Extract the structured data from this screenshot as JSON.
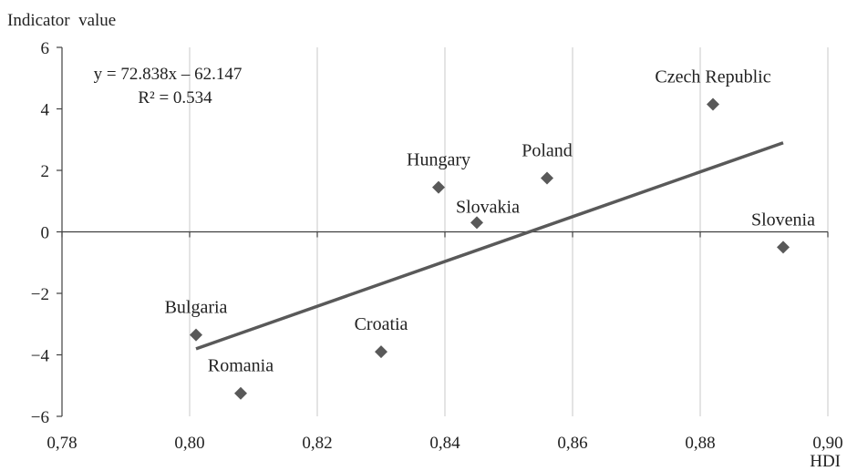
{
  "chart_data": {
    "type": "scatter",
    "ylabel": "Indicator  value",
    "xlabel": "HDI",
    "xlim": [
      0.78,
      0.9
    ],
    "ylim": [
      -6,
      6
    ],
    "x_ticks": [
      "0,78",
      "0,80",
      "0,82",
      "0,84",
      "0,86",
      "0,88",
      "0,90"
    ],
    "y_ticks": [
      "−6",
      "−4",
      "−2",
      "0",
      "2",
      "4",
      "6"
    ],
    "grid": "vertical",
    "points": [
      {
        "label": "Bulgaria",
        "x": 0.801,
        "y": -3.35
      },
      {
        "label": "Romania",
        "x": 0.808,
        "y": -5.25
      },
      {
        "label": "Croatia",
        "x": 0.83,
        "y": -3.9
      },
      {
        "label": "Hungary",
        "x": 0.839,
        "y": 1.45
      },
      {
        "label": "Slovakia",
        "x": 0.845,
        "y": 0.3
      },
      {
        "label": "Poland",
        "x": 0.856,
        "y": 1.75
      },
      {
        "label": "Czech Republic",
        "x": 0.882,
        "y": 4.15
      },
      {
        "label": "Slovenia",
        "x": 0.893,
        "y": -0.5
      }
    ],
    "trendline": {
      "x": [
        0.801,
        0.893
      ],
      "equation": "y = 72.838x – 62.147",
      "r_squared": "R² = 0.534"
    },
    "colors": {
      "marker": "#595959",
      "trendline": "#595959",
      "grid": "#c8c8c8",
      "axis": "#404040"
    }
  }
}
